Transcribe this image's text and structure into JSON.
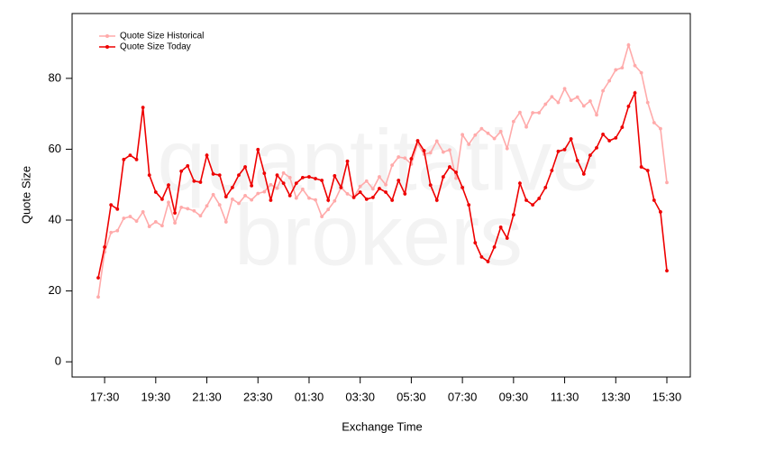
{
  "chart_data": {
    "type": "line",
    "watermark": [
      "quantitative",
      "brokers"
    ],
    "ylabel": "Quote Size",
    "xlabel": "Exchange Time",
    "categories": [
      null,
      "17:30",
      null,
      null,
      null,
      null,
      null,
      null,
      null,
      "19:30",
      null,
      null,
      null,
      null,
      null,
      null,
      null,
      "21:30",
      null,
      null,
      null,
      null,
      null,
      null,
      null,
      "23:30",
      null,
      null,
      null,
      null,
      null,
      null,
      null,
      "01:30",
      null,
      null,
      null,
      null,
      null,
      null,
      null,
      "03:30",
      null,
      null,
      null,
      null,
      null,
      null,
      null,
      "05:30",
      null,
      null,
      null,
      null,
      null,
      null,
      null,
      "07:30",
      null,
      null,
      null,
      null,
      null,
      null,
      null,
      "09:30",
      null,
      null,
      null,
      null,
      null,
      null,
      null,
      "11:30",
      null,
      null,
      null,
      null,
      null,
      null,
      null,
      "13:30",
      null,
      null,
      null,
      null,
      null,
      null,
      null,
      "15:30"
    ],
    "ylim": [
      -4.3,
      98.3
    ],
    "yticks": [
      0,
      20,
      40,
      60,
      80
    ],
    "legend": "top-left",
    "series": [
      {
        "name": "Quote Size Historical",
        "color": "#ffaaaa",
        "values": [
          18.3,
          31,
          36.5,
          37,
          40.5,
          41,
          39.7,
          42.3,
          38.2,
          39.5,
          38.4,
          45,
          39.2,
          43.6,
          43.2,
          42.6,
          41.2,
          44,
          47.2,
          44.3,
          39.5,
          45.9,
          44.7,
          46.9,
          45.7,
          47.5,
          48,
          50,
          49,
          53.3,
          52,
          46.2,
          48.7,
          46.2,
          45.7,
          41,
          43,
          45.4,
          49.2,
          47.4,
          46.4,
          49.5,
          51,
          48.8,
          52.2,
          50,
          55.5,
          57.8,
          57.5,
          55.8,
          61.7,
          58.6,
          59,
          62.3,
          59.2,
          59.8,
          51.8,
          64.1,
          61.4,
          64,
          65.8,
          64.5,
          63,
          65,
          60.2,
          67.8,
          70.4,
          66.3,
          70.3,
          70.3,
          72.7,
          74.8,
          73.2,
          77.1,
          73.8,
          74.7,
          72.2,
          73.6,
          69.7,
          76.5,
          79.3,
          82.4,
          83,
          89.4,
          83.6,
          81.6,
          73.2,
          67.5,
          65.8,
          50.6
        ]
      },
      {
        "name": "Quote Size Today",
        "color": "#ee0000",
        "values": [
          23.7,
          32.4,
          44.3,
          43.1,
          57.1,
          58.3,
          57.1,
          71.8,
          52.7,
          47.9,
          45.9,
          49.9,
          42,
          53.8,
          55.3,
          51,
          50.7,
          58.3,
          53,
          52.7,
          46.6,
          49.2,
          52.7,
          55,
          49.7,
          59.9,
          53.2,
          45.6,
          52.7,
          50.4,
          46.9,
          50.4,
          52,
          52.2,
          51.7,
          51.2,
          45.6,
          52.5,
          49.2,
          56.6,
          46.4,
          47.9,
          45.9,
          46.4,
          48.9,
          47.9,
          45.6,
          51.2,
          47.4,
          57.3,
          62.4,
          59.6,
          49.9,
          45.6,
          52.2,
          55,
          53.5,
          49.2,
          44.3,
          33.6,
          29.6,
          28.3,
          32.4,
          38,
          34.9,
          41.5,
          50.4,
          45.6,
          44.3,
          46.1,
          49.2,
          54,
          59.4,
          59.9,
          62.9,
          56.8,
          53,
          58.3,
          60.4,
          64.2,
          62.4,
          63.2,
          66.2,
          72.1,
          75.9,
          55,
          54,
          45.6,
          42.3,
          25.7
        ]
      }
    ]
  }
}
